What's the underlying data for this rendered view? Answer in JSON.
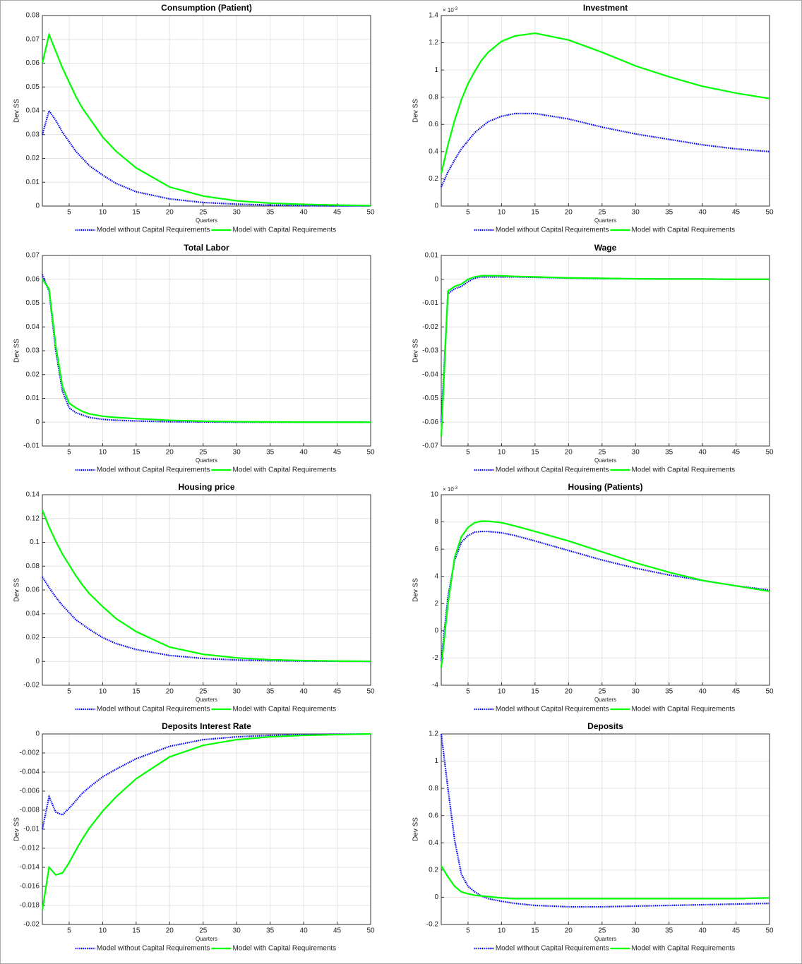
{
  "chart_data": [
    {
      "type": "line",
      "title": "Consumption (Patient)",
      "xlabel": "Quarters",
      "ylabel": "Dev SS",
      "x": [
        1,
        2,
        3,
        4,
        5,
        6,
        7,
        8,
        10,
        12,
        15,
        20,
        25,
        30,
        35,
        40,
        45,
        50
      ],
      "xlim": [
        1,
        50
      ],
      "xticks": [
        5,
        10,
        15,
        20,
        25,
        30,
        35,
        40,
        45,
        50
      ],
      "ylim": [
        0,
        0.08
      ],
      "yticks": [
        0,
        0.01,
        0.02,
        0.03,
        0.04,
        0.05,
        0.06,
        0.07,
        0.08
      ],
      "grid": true,
      "series": [
        {
          "name": "Model without Capital Requirements",
          "color": "#0000ff",
          "style": "dotted",
          "values": [
            0.03,
            0.04,
            0.036,
            0.031,
            0.027,
            0.023,
            0.02,
            0.017,
            0.013,
            0.0095,
            0.006,
            0.003,
            0.0015,
            0.0008,
            0.0004,
            0.0002,
            0.0001,
            0.0001
          ]
        },
        {
          "name": "Model with Capital Requirements",
          "color": "#00ff00",
          "style": "solid",
          "values": [
            0.06,
            0.072,
            0.065,
            0.058,
            0.052,
            0.046,
            0.041,
            0.037,
            0.029,
            0.023,
            0.016,
            0.008,
            0.0042,
            0.0022,
            0.0012,
            0.0007,
            0.0004,
            0.0002
          ]
        }
      ]
    },
    {
      "type": "line",
      "title": "Investment",
      "xlabel": "Quarters",
      "ylabel": "Dev SS",
      "y_multiplier": {
        "base": "× 10",
        "exponent": "-3"
      },
      "x": [
        1,
        2,
        3,
        4,
        5,
        6,
        7,
        8,
        10,
        12,
        15,
        20,
        25,
        30,
        35,
        40,
        45,
        50
      ],
      "xlim": [
        1,
        50
      ],
      "xticks": [
        5,
        10,
        15,
        20,
        25,
        30,
        35,
        40,
        45,
        50
      ],
      "ylim": [
        0,
        1.4
      ],
      "yticks": [
        0,
        0.2,
        0.4,
        0.6,
        0.8,
        1,
        1.2,
        1.4
      ],
      "grid": true,
      "series": [
        {
          "name": "Model without Capital Requirements",
          "color": "#0000ff",
          "style": "dotted",
          "values": [
            0.14,
            0.25,
            0.34,
            0.42,
            0.48,
            0.54,
            0.58,
            0.62,
            0.66,
            0.68,
            0.68,
            0.64,
            0.58,
            0.53,
            0.49,
            0.45,
            0.42,
            0.4
          ]
        },
        {
          "name": "Model with Capital Requirements",
          "color": "#00ff00",
          "style": "solid",
          "values": [
            0.24,
            0.45,
            0.63,
            0.78,
            0.9,
            0.99,
            1.07,
            1.13,
            1.21,
            1.25,
            1.27,
            1.22,
            1.13,
            1.03,
            0.95,
            0.88,
            0.83,
            0.79
          ]
        }
      ]
    },
    {
      "type": "line",
      "title": "Total Labor",
      "xlabel": "Quarters",
      "ylabel": "Dev SS",
      "x": [
        1,
        2,
        3,
        4,
        5,
        6,
        7,
        8,
        10,
        12,
        15,
        20,
        25,
        30,
        35,
        40,
        45,
        50
      ],
      "xlim": [
        1,
        50
      ],
      "xticks": [
        5,
        10,
        15,
        20,
        25,
        30,
        35,
        40,
        45,
        50
      ],
      "ylim": [
        -0.01,
        0.07
      ],
      "yticks": [
        -0.01,
        0,
        0.01,
        0.02,
        0.03,
        0.04,
        0.05,
        0.06,
        0.07
      ],
      "grid": true,
      "series": [
        {
          "name": "Model without Capital Requirements",
          "color": "#0000ff",
          "style": "dotted",
          "values": [
            0.062,
            0.055,
            0.03,
            0.013,
            0.006,
            0.004,
            0.003,
            0.002,
            0.0012,
            0.0008,
            0.0005,
            0.0002,
            0.0001,
            0,
            0,
            0,
            0,
            0
          ]
        },
        {
          "name": "Model with Capital Requirements",
          "color": "#00ff00",
          "style": "solid",
          "values": [
            0.06,
            0.056,
            0.032,
            0.015,
            0.008,
            0.006,
            0.0045,
            0.0035,
            0.0025,
            0.002,
            0.0015,
            0.0008,
            0.0004,
            0.0002,
            0.0001,
            0,
            0,
            0
          ]
        }
      ]
    },
    {
      "type": "line",
      "title": "Wage",
      "xlabel": "Quarters",
      "ylabel": "Dev SS",
      "x": [
        1,
        2,
        3,
        4,
        5,
        6,
        7,
        8,
        10,
        12,
        15,
        20,
        25,
        30,
        35,
        40,
        45,
        50
      ],
      "xlim": [
        1,
        50
      ],
      "xticks": [
        5,
        10,
        15,
        20,
        25,
        30,
        35,
        40,
        45,
        50
      ],
      "ylim": [
        -0.07,
        0.01
      ],
      "yticks": [
        -0.07,
        -0.06,
        -0.05,
        -0.04,
        -0.03,
        -0.02,
        -0.01,
        0,
        0.01
      ],
      "grid": true,
      "series": [
        {
          "name": "Model without Capital Requirements",
          "color": "#0000ff",
          "style": "dotted",
          "values": [
            -0.06,
            -0.006,
            -0.004,
            -0.003,
            -0.001,
            0.0005,
            0.001,
            0.001,
            0.001,
            0.001,
            0.0008,
            0.0005,
            0.0003,
            0.0002,
            0.0001,
            0.0001,
            0,
            0
          ]
        },
        {
          "name": "Model with Capital Requirements",
          "color": "#00ff00",
          "style": "solid",
          "values": [
            -0.066,
            -0.005,
            -0.003,
            -0.002,
            0,
            0.001,
            0.0015,
            0.0015,
            0.0015,
            0.0012,
            0.001,
            0.0006,
            0.0004,
            0.0002,
            0.0001,
            0.0001,
            0,
            0
          ]
        }
      ]
    },
    {
      "type": "line",
      "title": "Housing price",
      "xlabel": "Quarters",
      "ylabel": "Dev SS",
      "x": [
        1,
        2,
        3,
        4,
        5,
        6,
        7,
        8,
        10,
        12,
        15,
        20,
        25,
        30,
        35,
        40,
        45,
        50
      ],
      "xlim": [
        1,
        50
      ],
      "xticks": [
        5,
        10,
        15,
        20,
        25,
        30,
        35,
        40,
        45,
        50
      ],
      "ylim": [
        -0.02,
        0.14
      ],
      "yticks": [
        -0.02,
        0,
        0.02,
        0.04,
        0.06,
        0.08,
        0.1,
        0.12,
        0.14
      ],
      "grid": true,
      "series": [
        {
          "name": "Model without Capital Requirements",
          "color": "#0000ff",
          "style": "dotted",
          "values": [
            0.071,
            0.062,
            0.054,
            0.047,
            0.041,
            0.035,
            0.031,
            0.027,
            0.02,
            0.015,
            0.01,
            0.005,
            0.0025,
            0.0012,
            0.0006,
            0.0003,
            0.0001,
            0
          ]
        },
        {
          "name": "Model with Capital Requirements",
          "color": "#00ff00",
          "style": "solid",
          "values": [
            0.127,
            0.113,
            0.101,
            0.09,
            0.081,
            0.072,
            0.064,
            0.057,
            0.046,
            0.036,
            0.025,
            0.012,
            0.006,
            0.003,
            0.0014,
            0.0007,
            0.0003,
            0.0001
          ]
        }
      ]
    },
    {
      "type": "line",
      "title": "Housing (Patients)",
      "xlabel": "Quarters",
      "ylabel": "Dev SS",
      "y_multiplier": {
        "base": "× 10",
        "exponent": "-3"
      },
      "x": [
        1,
        2,
        3,
        4,
        5,
        6,
        7,
        8,
        10,
        12,
        15,
        20,
        25,
        30,
        35,
        40,
        45,
        50
      ],
      "xlim": [
        1,
        50
      ],
      "xticks": [
        5,
        10,
        15,
        20,
        25,
        30,
        35,
        40,
        45,
        50
      ],
      "ylim": [
        -4,
        10
      ],
      "yticks": [
        -4,
        -2,
        0,
        2,
        4,
        6,
        8,
        10
      ],
      "grid": true,
      "series": [
        {
          "name": "Model without Capital Requirements",
          "color": "#0000ff",
          "style": "dotted",
          "values": [
            -2.2,
            2.5,
            5.2,
            6.5,
            7.0,
            7.25,
            7.3,
            7.3,
            7.2,
            7.0,
            6.6,
            5.9,
            5.2,
            4.6,
            4.1,
            3.7,
            3.3,
            3.0
          ]
        },
        {
          "name": "Model with Capital Requirements",
          "color": "#00ff00",
          "style": "solid",
          "values": [
            -2.7,
            2.0,
            5.4,
            6.9,
            7.6,
            7.95,
            8.05,
            8.05,
            7.95,
            7.7,
            7.3,
            6.6,
            5.8,
            5.0,
            4.3,
            3.7,
            3.3,
            2.9
          ]
        }
      ]
    },
    {
      "type": "line",
      "title": "Deposits Interest Rate",
      "xlabel": "Quarters",
      "ylabel": "Dev SS",
      "x": [
        1,
        2,
        3,
        4,
        5,
        6,
        7,
        8,
        10,
        12,
        15,
        20,
        25,
        30,
        35,
        40,
        45,
        50
      ],
      "xlim": [
        1,
        50
      ],
      "xticks": [
        5,
        10,
        15,
        20,
        25,
        30,
        35,
        40,
        45,
        50
      ],
      "ylim": [
        -0.02,
        0
      ],
      "yticks": [
        -0.02,
        -0.018,
        -0.016,
        -0.014,
        -0.012,
        -0.01,
        -0.008,
        -0.006,
        -0.004,
        -0.002,
        0
      ],
      "grid": true,
      "series": [
        {
          "name": "Model without Capital Requirements",
          "color": "#0000ff",
          "style": "dotted",
          "values": [
            -0.01,
            -0.0066,
            -0.0082,
            -0.0085,
            -0.0078,
            -0.007,
            -0.0062,
            -0.0056,
            -0.0045,
            -0.0037,
            -0.0026,
            -0.0013,
            -0.0006,
            -0.0003,
            -0.00015,
            -7e-05,
            -3e-05,
            0
          ]
        },
        {
          "name": "Model with Capital Requirements",
          "color": "#00ff00",
          "style": "solid",
          "values": [
            -0.0185,
            -0.014,
            -0.0148,
            -0.0146,
            -0.0135,
            -0.0122,
            -0.011,
            -0.0099,
            -0.0081,
            -0.0066,
            -0.0047,
            -0.0024,
            -0.0012,
            -0.0006,
            -0.0003,
            -0.00015,
            -7e-05,
            0
          ]
        }
      ]
    },
    {
      "type": "line",
      "title": "Deposits",
      "xlabel": "Quarters",
      "ylabel": "Dev SS",
      "x": [
        1,
        2,
        3,
        4,
        5,
        6,
        7,
        8,
        10,
        12,
        15,
        20,
        25,
        30,
        35,
        40,
        45,
        50
      ],
      "xlim": [
        1,
        50
      ],
      "xticks": [
        5,
        10,
        15,
        20,
        25,
        30,
        35,
        40,
        45,
        50
      ],
      "ylim": [
        -0.2,
        1.2
      ],
      "yticks": [
        -0.2,
        0,
        0.2,
        0.4,
        0.6,
        0.8,
        1,
        1.2
      ],
      "grid": true,
      "series": [
        {
          "name": "Model without Capital Requirements",
          "color": "#0000ff",
          "style": "dotted",
          "values": [
            1.2,
            0.8,
            0.42,
            0.17,
            0.08,
            0.04,
            0.01,
            -0.01,
            -0.03,
            -0.045,
            -0.06,
            -0.07,
            -0.07,
            -0.065,
            -0.06,
            -0.055,
            -0.05,
            -0.045
          ]
        },
        {
          "name": "Model with Capital Requirements",
          "color": "#00ff00",
          "style": "solid",
          "values": [
            0.23,
            0.15,
            0.08,
            0.04,
            0.025,
            0.015,
            0.01,
            0.005,
            -0.005,
            -0.01,
            -0.01,
            -0.01,
            -0.01,
            -0.01,
            -0.01,
            -0.01,
            -0.01,
            -0.005
          ]
        }
      ]
    }
  ]
}
